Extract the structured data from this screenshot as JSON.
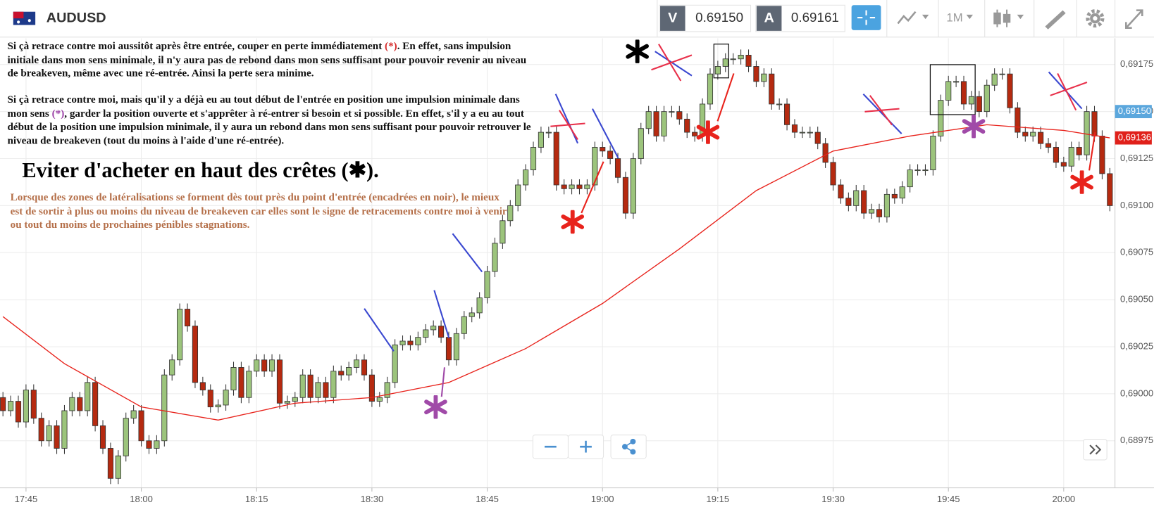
{
  "header": {
    "symbol": "AUDUSD",
    "sell_label": "V",
    "sell_price": "0.69150",
    "buy_label": "A",
    "buy_price": "0.69161",
    "timeframe": "1M"
  },
  "annotations": {
    "p1": [
      "Si çà retrace contre moi aussitôt après être entrée, couper en perte immédiatement ",
      "(*)",
      ". En effet, sans impulsion initiale dans mon sens minimale, il n'y aura pas de rebond dans mon sens suffisant pour pouvoir revenir au niveau de breakeven, même avec une ré-entrée. Ainsi la perte sera minime."
    ],
    "p2": [
      "Si çà retrace contre moi,  mais qu'il y a déjà eu au tout début de l'entrée en position une impulsion minimale dans mon sens ",
      "(*)",
      ", garder la position ouverte et s'apprêter à ré-entrer si besoin et si possible. En effet, s'il y a eu au tout début de la position une impulsion minimale, il y aura un rebond dans mon sens suffisant pour pouvoir retrouver le niveau de breakeven (tout du moins à l'aide d'une ré-entrée)."
    ],
    "heading": "Eviter d'acheter en haut des crêtes (✱).",
    "p3": "Lorsque des zones de latéralisations se forment dès tout près du point d'entrée (encadrées en noir), le mieux est de sortir à plus ou moins du niveau de breakeven car elles sont le signe de retracements contre moi à venir ou tout du moins de prochaines pénibles stagnations."
  },
  "chart_data": {
    "type": "candlestick",
    "x": [
      "17:42",
      "17:43",
      "17:44",
      "17:45",
      "17:46",
      "17:47",
      "17:48",
      "17:49",
      "17:50",
      "17:51",
      "17:52",
      "17:53",
      "17:54",
      "17:55",
      "17:56",
      "17:57",
      "17:58",
      "17:59",
      "18:00",
      "18:01",
      "18:02",
      "18:03",
      "18:04",
      "18:05",
      "18:06",
      "18:07",
      "18:08",
      "18:09",
      "18:10",
      "18:11",
      "18:12",
      "18:13",
      "18:14",
      "18:15",
      "18:16",
      "18:17",
      "18:18",
      "18:19",
      "18:20",
      "18:21",
      "18:22",
      "18:23",
      "18:24",
      "18:25",
      "18:26",
      "18:27",
      "18:28",
      "18:29",
      "18:30",
      "18:31",
      "18:32",
      "18:33",
      "18:34",
      "18:35",
      "18:36",
      "18:37",
      "18:38",
      "18:39",
      "18:40",
      "18:41",
      "18:42",
      "18:43",
      "18:44",
      "18:45",
      "18:46",
      "18:47",
      "18:48",
      "18:49",
      "18:50",
      "18:51",
      "18:52",
      "18:53",
      "18:54",
      "18:55",
      "18:56",
      "18:57",
      "18:58",
      "18:59",
      "19:00",
      "19:01",
      "19:02",
      "19:03",
      "19:04",
      "19:05",
      "19:06",
      "19:07",
      "19:08",
      "19:09",
      "19:10",
      "19:11",
      "19:12",
      "19:13",
      "19:14",
      "19:15",
      "19:16",
      "19:17",
      "19:18",
      "19:19",
      "19:20",
      "19:21",
      "19:22",
      "19:23",
      "19:24",
      "19:25",
      "19:26",
      "19:27",
      "19:28",
      "19:29",
      "19:30",
      "19:31",
      "19:32",
      "19:33",
      "19:34",
      "19:35",
      "19:36",
      "19:37",
      "19:38",
      "19:39",
      "19:40",
      "19:41",
      "19:42",
      "19:43",
      "19:44",
      "19:45",
      "19:46",
      "19:47",
      "19:48",
      "19:49",
      "19:50",
      "19:51",
      "19:52",
      "19:53",
      "19:54",
      "19:55",
      "19:56",
      "19:57",
      "19:58",
      "19:59",
      "20:00",
      "20:01",
      "20:02",
      "20:03",
      "20:04",
      "20:05",
      "20:06"
    ],
    "open": [
      0.68998,
      0.68991,
      0.68996,
      0.68985,
      0.69002,
      0.68987,
      0.68975,
      0.68983,
      0.68971,
      0.68991,
      0.68998,
      0.68991,
      0.69006,
      0.68983,
      0.68971,
      0.68955,
      0.68967,
      0.68987,
      0.68991,
      0.68975,
      0.68971,
      0.68975,
      0.6901,
      0.69018,
      0.69045,
      0.69036,
      0.69006,
      0.69002,
      0.68993,
      0.68994,
      0.69002,
      0.69014,
      0.68998,
      0.69012,
      0.69018,
      0.69012,
      0.69018,
      0.68995,
      0.68996,
      0.68998,
      0.6901,
      0.68998,
      0.69006,
      0.68998,
      0.69012,
      0.6901,
      0.69014,
      0.69018,
      0.6901,
      0.68996,
      0.68998,
      0.69006,
      0.69026,
      0.69028,
      0.69026,
      0.6903,
      0.69034,
      0.69036,
      0.6903,
      0.69018,
      0.69032,
      0.69041,
      0.69043,
      0.69051,
      0.69065,
      0.6908,
      0.69092,
      0.691,
      0.69111,
      0.69119,
      0.69131,
      0.69139,
      0.69139,
      0.69111,
      0.69109,
      0.69111,
      0.69109,
      0.69111,
      0.69131,
      0.69129,
      0.69125,
      0.69115,
      0.69096,
      0.69125,
      0.69141,
      0.6915,
      0.69137,
      0.6915,
      0.6915,
      0.69146,
      0.69139,
      0.69137,
      0.69154,
      0.6917,
      0.69174,
      0.69178,
      0.69178,
      0.6918,
      0.69174,
      0.69166,
      0.6917,
      0.69154,
      0.69154,
      0.69143,
      0.69139,
      0.69139,
      0.69139,
      0.69133,
      0.69123,
      0.69111,
      0.69104,
      0.691,
      0.69108,
      0.69096,
      0.69098,
      0.69094,
      0.69106,
      0.69104,
      0.6911,
      0.69119,
      0.69119,
      0.69119,
      0.69137,
      0.69156,
      0.69166,
      0.69166,
      0.69154,
      0.69158,
      0.6915,
      0.69164,
      0.6917,
      0.6917,
      0.69152,
      0.69139,
      0.69137,
      0.69139,
      0.69133,
      0.69131,
      0.69123,
      0.69121,
      0.69131,
      0.69127,
      0.6915,
      0.69137,
      0.69117
    ],
    "high": [
      0.69001,
      0.68999,
      0.68999,
      0.69005,
      0.69005,
      0.6899,
      0.68986,
      0.68986,
      0.68994,
      0.69001,
      0.69001,
      0.69009,
      0.69009,
      0.68986,
      0.68974,
      0.6897,
      0.6899,
      0.68994,
      0.68994,
      0.68978,
      0.68978,
      0.69013,
      0.69021,
      0.69048,
      0.69048,
      0.69039,
      0.69009,
      0.69005,
      0.68997,
      0.69005,
      0.69017,
      0.69017,
      0.69015,
      0.69021,
      0.69021,
      0.69021,
      0.69021,
      0.68999,
      0.69001,
      0.69013,
      0.69013,
      0.69009,
      0.69009,
      0.69015,
      0.69015,
      0.69017,
      0.69021,
      0.69021,
      0.69013,
      0.69001,
      0.69009,
      0.69029,
      0.69031,
      0.69031,
      0.69033,
      0.69037,
      0.69039,
      0.69039,
      0.69033,
      0.69035,
      0.69044,
      0.69046,
      0.69054,
      0.69068,
      0.69083,
      0.69095,
      0.69103,
      0.69114,
      0.69122,
      0.69134,
      0.69142,
      0.69142,
      0.69142,
      0.69114,
      0.69114,
      0.69114,
      0.69114,
      0.69134,
      0.69134,
      0.69132,
      0.69128,
      0.69118,
      0.69128,
      0.69144,
      0.69153,
      0.69153,
      0.69153,
      0.69153,
      0.69153,
      0.69149,
      0.69142,
      0.69157,
      0.69173,
      0.69177,
      0.69181,
      0.69181,
      0.69183,
      0.69183,
      0.69177,
      0.69173,
      0.69173,
      0.69157,
      0.69157,
      0.69146,
      0.69142,
      0.69142,
      0.69142,
      0.69136,
      0.69126,
      0.69114,
      0.69107,
      0.69111,
      0.69111,
      0.69101,
      0.69101,
      0.69109,
      0.69109,
      0.69113,
      0.69122,
      0.69122,
      0.69122,
      0.6914,
      0.69159,
      0.69169,
      0.69169,
      0.69169,
      0.69161,
      0.69161,
      0.69167,
      0.69173,
      0.69173,
      0.69173,
      0.69155,
      0.69142,
      0.69142,
      0.69142,
      0.69136,
      0.69134,
      0.69126,
      0.69134,
      0.69134,
      0.69153,
      0.69153,
      0.6914,
      0.6912
    ],
    "low": [
      0.68988,
      0.68988,
      0.68982,
      0.68982,
      0.68984,
      0.68972,
      0.68972,
      0.68968,
      0.68968,
      0.68988,
      0.68988,
      0.68988,
      0.6898,
      0.68968,
      0.68952,
      0.68952,
      0.68964,
      0.68984,
      0.68972,
      0.68968,
      0.68968,
      0.68972,
      0.69007,
      0.69015,
      0.69033,
      0.69003,
      0.68999,
      0.6899,
      0.6899,
      0.68991,
      0.68999,
      0.68995,
      0.68995,
      0.69009,
      0.69009,
      0.69009,
      0.68992,
      0.68992,
      0.68993,
      0.68995,
      0.68995,
      0.68995,
      0.68995,
      0.68995,
      0.69007,
      0.69007,
      0.69011,
      0.69007,
      0.68993,
      0.68993,
      0.68995,
      0.69003,
      0.69023,
      0.69023,
      0.69023,
      0.69027,
      0.69031,
      0.69027,
      0.69015,
      0.69015,
      0.69029,
      0.69038,
      0.6904,
      0.69048,
      0.69062,
      0.69077,
      0.69089,
      0.69097,
      0.69108,
      0.69116,
      0.69128,
      0.69136,
      0.69108,
      0.69106,
      0.69106,
      0.69106,
      0.69106,
      0.69108,
      0.69126,
      0.69122,
      0.69112,
      0.69093,
      0.69093,
      0.69122,
      0.69138,
      0.69134,
      0.69134,
      0.69147,
      0.69143,
      0.69136,
      0.69134,
      0.69134,
      0.69151,
      0.69167,
      0.69171,
      0.69175,
      0.69175,
      0.69171,
      0.69163,
      0.69163,
      0.69151,
      0.69151,
      0.6914,
      0.69136,
      0.69136,
      0.69136,
      0.6913,
      0.6912,
      0.69108,
      0.69101,
      0.69097,
      0.69097,
      0.69093,
      0.69093,
      0.69091,
      0.69091,
      0.69101,
      0.69101,
      0.69107,
      0.69116,
      0.69116,
      0.69116,
      0.69134,
      0.69153,
      0.69163,
      0.69151,
      0.69151,
      0.69147,
      0.69147,
      0.69161,
      0.69167,
      0.69149,
      0.69136,
      0.69134,
      0.69134,
      0.6913,
      0.69128,
      0.6912,
      0.69118,
      0.69118,
      0.69124,
      0.69124,
      0.69134,
      0.69114,
      0.69097
    ],
    "close": [
      0.68991,
      0.68996,
      0.68985,
      0.69002,
      0.68987,
      0.68975,
      0.68983,
      0.68971,
      0.68991,
      0.68998,
      0.68991,
      0.69006,
      0.68983,
      0.68971,
      0.68955,
      0.68967,
      0.68987,
      0.68991,
      0.68975,
      0.68971,
      0.68975,
      0.6901,
      0.69018,
      0.69045,
      0.69036,
      0.69006,
      0.69002,
      0.68993,
      0.68994,
      0.69002,
      0.69014,
      0.68998,
      0.69012,
      0.69018,
      0.69012,
      0.69018,
      0.68995,
      0.68996,
      0.68998,
      0.6901,
      0.68998,
      0.69006,
      0.68998,
      0.69012,
      0.6901,
      0.69014,
      0.69018,
      0.6901,
      0.68996,
      0.68998,
      0.69006,
      0.69026,
      0.69028,
      0.69026,
      0.6903,
      0.69034,
      0.69036,
      0.6903,
      0.69018,
      0.69032,
      0.69041,
      0.69043,
      0.69051,
      0.69065,
      0.6908,
      0.69092,
      0.691,
      0.69111,
      0.69119,
      0.69131,
      0.69139,
      0.69139,
      0.69111,
      0.69109,
      0.69111,
      0.69109,
      0.69111,
      0.69131,
      0.69129,
      0.69125,
      0.69115,
      0.69096,
      0.69125,
      0.69141,
      0.6915,
      0.69137,
      0.6915,
      0.6915,
      0.69146,
      0.69139,
      0.69137,
      0.69154,
      0.6917,
      0.69174,
      0.69178,
      0.69178,
      0.6918,
      0.69174,
      0.69166,
      0.6917,
      0.69154,
      0.69154,
      0.69143,
      0.69139,
      0.69139,
      0.69139,
      0.69133,
      0.69123,
      0.69111,
      0.69104,
      0.691,
      0.69108,
      0.69096,
      0.69098,
      0.69094,
      0.69106,
      0.69104,
      0.6911,
      0.69119,
      0.69119,
      0.69119,
      0.69137,
      0.69156,
      0.69166,
      0.69166,
      0.69154,
      0.69158,
      0.6915,
      0.69164,
      0.6917,
      0.6917,
      0.69152,
      0.69139,
      0.69137,
      0.69139,
      0.69133,
      0.69131,
      0.69123,
      0.69121,
      0.69131,
      0.69127,
      0.6915,
      0.69137,
      0.69117,
      0.691
    ],
    "up_color": "#9cc47c",
    "down_color": "#b52a10",
    "ma": {
      "color": "#e8231c",
      "x": [
        "17:42",
        "17:50",
        "18:00",
        "18:10",
        "18:20",
        "18:30",
        "18:40",
        "18:50",
        "19:00",
        "19:10",
        "19:20",
        "19:30",
        "19:40",
        "19:50",
        "20:00",
        "20:06"
      ],
      "values": [
        0.69041,
        0.69016,
        0.68993,
        0.68986,
        0.68995,
        0.68998,
        0.69006,
        0.69024,
        0.69048,
        0.69077,
        0.69108,
        0.69129,
        0.69137,
        0.69143,
        0.6914,
        0.69136
      ]
    },
    "xticks": [
      "17:45",
      "18:00",
      "18:15",
      "18:30",
      "18:45",
      "19:00",
      "19:15",
      "19:30",
      "19:45",
      "20:00"
    ],
    "ylim": [
      0.6895,
      0.69189
    ],
    "yticks": [
      {
        "value": 0.68975,
        "label": "0,68975"
      },
      {
        "value": 0.69,
        "label": "0,69000"
      },
      {
        "value": 0.69025,
        "label": "0,69025"
      },
      {
        "value": 0.6905,
        "label": "0,69050"
      },
      {
        "value": 0.69075,
        "label": "0,69075"
      },
      {
        "value": 0.691,
        "label": "0,69100"
      },
      {
        "value": 0.69125,
        "label": "0,69125"
      },
      {
        "value": 0.6915,
        "label": "0,69150"
      },
      {
        "value": 0.69175,
        "label": "0,69175"
      }
    ],
    "price_labels": [
      {
        "value": 0.6915,
        "label": "0,69150",
        "color": "#5ba7dd"
      },
      {
        "value": 0.69136,
        "label": "0,69136",
        "color": "#e0201a"
      }
    ],
    "grid": true
  }
}
